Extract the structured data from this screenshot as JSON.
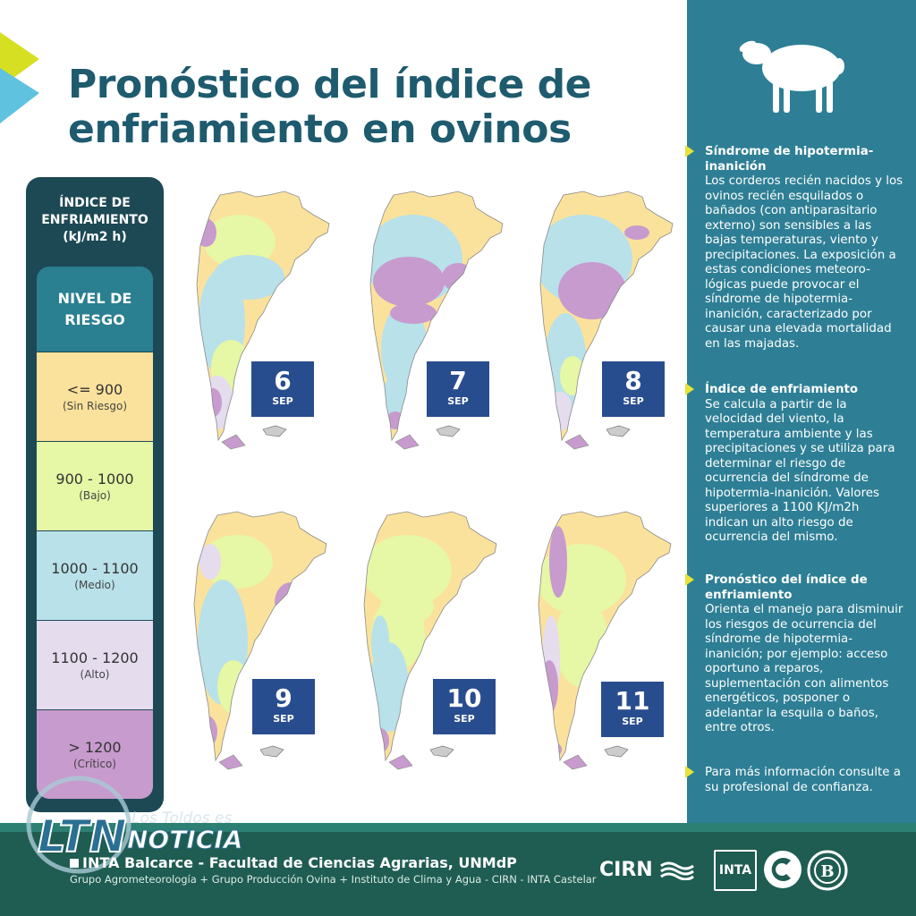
{
  "title": "Pronóstico del índice de enfriamiento en ovinos",
  "legend": {
    "title_lines": [
      "ÍNDICE DE",
      "ENFRIAMIENTO",
      "(kJ/m2 h)"
    ],
    "level_label_lines": [
      "NIVEL DE",
      "RIESGO"
    ],
    "levels": [
      {
        "range": "<= 900",
        "name": "(Sin Riesgo)",
        "color": "#fbe29c"
      },
      {
        "range": "900 - 1000",
        "name": "(Bajo)",
        "color": "#e6f7a5"
      },
      {
        "range": "1000 - 1100",
        "name": "(Medio)",
        "color": "#b8e1ea"
      },
      {
        "range": "1100 - 1200",
        "name": "(Alto)",
        "color": "#e5dcee"
      },
      {
        "range": "> 1200",
        "name": "(Crítico)",
        "color": "#c79bcd"
      }
    ]
  },
  "maps": [
    {
      "day": "6",
      "month": "SEP"
    },
    {
      "day": "7",
      "month": "SEP"
    },
    {
      "day": "8",
      "month": "SEP"
    },
    {
      "day": "9",
      "month": "SEP"
    },
    {
      "day": "10",
      "month": "SEP"
    },
    {
      "day": "11",
      "month": "SEP"
    }
  ],
  "panel": {
    "sections": [
      {
        "heading": "Síndrome de hipotermia-inanición",
        "body": "Los corderos recién nacidos y los ovinos recién esquilados o bañados (con antiparasitario externo) son sensibles a las bajas temperaturas, viento y precipitaciones. La exposición a estas condiciones meteoro-lógicas puede provocar el síndrome de hipotermia-inanición, caracterizado por causar una elevada mortalidad en las majadas."
      },
      {
        "heading": "Índice de enfriamiento",
        "body": "Se calcula a partir de la velocidad del viento, la temperatura ambiente y las precipitaciones y se utiliza para determinar el riesgo de ocurrencia del síndrome de hipotermia-inanición. Valores superiores a 1100 KJ/m2h indican un alto riesgo de ocurrencia del mismo."
      },
      {
        "heading": "Pronóstico del índice de enfriamiento",
        "body": "Orienta el manejo para disminuir los riesgos de ocurrencia del síndrome de hipotermia-inanición; por ejemplo: acceso oportuno a reparos, suplementación con alimentos energéticos, posponer o adelantar la esquila o baños, entre otros."
      },
      {
        "heading": "",
        "body": "Para más información consulte a su profesional de confianza."
      }
    ]
  },
  "footer": {
    "institution": "INTA Balcarce - Facultad de Ciencias Agrarias, UNMdP",
    "credits": "Grupo Agrometeorología + Grupo Producción Ovina + Instituto de Clima y Agua - CIRN - INTA Castelar",
    "cirn": "CIRN",
    "inta": "INTA",
    "watermark_ltn": "LTN",
    "watermark_los_toldos": "Los Toldos es",
    "watermark_noticia": "NOTICIA"
  },
  "colors": {
    "title": "#1e5b6e",
    "panel": "#2e7f95",
    "legend_bg": "#1d4955",
    "date_badge": "#284d8e",
    "bullet": "#e7e23a",
    "footer": "#1f5c52"
  },
  "icons": [
    "sheep-icon",
    "inta-logo",
    "cirn-logo",
    "unmdp-logo",
    "bullet-icon"
  ]
}
